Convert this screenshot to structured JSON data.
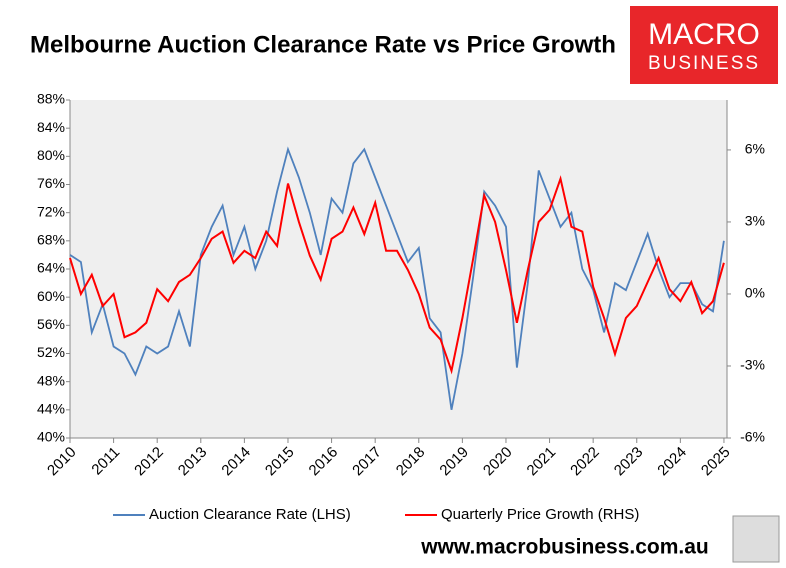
{
  "chart_data": {
    "type": "line",
    "title": "Melbourne Auction Clearance Rate vs Price Growth",
    "logo": [
      "MACRO",
      "BUSINESS"
    ],
    "footer": "www.macrobusiness.com.au",
    "x": [
      2010,
      2010.25,
      2010.5,
      2010.75,
      2011,
      2011.25,
      2011.5,
      2011.75,
      2012,
      2012.25,
      2012.5,
      2012.75,
      2013,
      2013.25,
      2013.5,
      2013.75,
      2014,
      2014.25,
      2014.5,
      2014.75,
      2015,
      2015.25,
      2015.5,
      2015.75,
      2016,
      2016.25,
      2016.5,
      2016.75,
      2017,
      2017.25,
      2017.5,
      2017.75,
      2018,
      2018.25,
      2018.5,
      2018.75,
      2019,
      2019.25,
      2019.5,
      2019.75,
      2020,
      2020.25,
      2020.5,
      2020.75,
      2021,
      2021.25,
      2021.5,
      2021.75,
      2022,
      2022.25,
      2022.5,
      2022.75,
      2023,
      2023.25,
      2023.5,
      2023.75,
      2024,
      2024.25,
      2024.5,
      2024.75,
      2025
    ],
    "series": [
      {
        "name": "Auction Clearance Rate (LHS)",
        "color": "#4f81bd",
        "values": [
          66,
          65,
          55,
          59,
          53,
          52,
          49,
          53,
          52,
          53,
          58,
          53,
          66,
          70,
          73,
          66,
          70,
          64,
          68,
          75,
          81,
          77,
          72,
          66,
          74,
          72,
          79,
          81,
          77,
          73,
          69,
          65,
          67,
          57,
          55,
          44,
          52,
          63,
          75,
          73,
          70,
          50,
          62,
          78,
          74,
          70,
          72,
          64,
          61,
          55,
          62,
          61,
          65,
          69,
          64,
          60,
          62,
          62,
          59,
          58,
          68
        ]
      },
      {
        "name": "Quarterly Price Growth (RHS)",
        "color": "#ff0000",
        "axis": "y2",
        "values": [
          1.5,
          0,
          0.8,
          -0.5,
          0,
          -1.8,
          -1.6,
          -1.2,
          0.2,
          -0.3,
          0.5,
          0.8,
          1.5,
          2.3,
          2.6,
          1.3,
          1.8,
          1.5,
          2.6,
          2.0,
          4.6,
          3.0,
          1.6,
          0.6,
          2.3,
          2.6,
          3.6,
          2.5,
          3.8,
          1.8,
          1.8,
          1.0,
          0,
          -1.4,
          -1.9,
          -3.2,
          -1.0,
          1.5,
          4.1,
          3.0,
          1.0,
          -1.2,
          1.0,
          3.0,
          3.5,
          4.8,
          2.8,
          2.6,
          0.3,
          -1.0,
          -2.5,
          -1.0,
          -0.5,
          0.5,
          1.5,
          0.2,
          -0.3,
          0.5,
          -0.8,
          -0.3,
          1.3
        ]
      }
    ],
    "xlim": [
      2010,
      2025.07
    ],
    "xticks": [
      2010,
      2011,
      2012,
      2013,
      2014,
      2015,
      2016,
      2017,
      2018,
      2019,
      2020,
      2021,
      2022,
      2023,
      2024,
      2025
    ],
    "ylim": [
      40,
      88
    ],
    "yticks": [
      {
        "value": 40,
        "label": "40%"
      },
      {
        "value": 44,
        "label": "44%"
      },
      {
        "value": 48,
        "label": "48%"
      },
      {
        "value": 52,
        "label": "52%"
      },
      {
        "value": 56,
        "label": "56%"
      },
      {
        "value": 60,
        "label": "60%"
      },
      {
        "value": 64,
        "label": "64%"
      },
      {
        "value": 68,
        "label": "68%"
      },
      {
        "value": 72,
        "label": "72%"
      },
      {
        "value": 76,
        "label": "76%"
      },
      {
        "value": 80,
        "label": "80%"
      },
      {
        "value": 84,
        "label": "84%"
      },
      {
        "value": 88,
        "label": "88%"
      }
    ],
    "y2lim": [
      -6,
      8.08
    ],
    "y2ticks": [
      {
        "value": -6,
        "label": "-6%"
      },
      {
        "value": -3,
        "label": "-3%"
      },
      {
        "value": 0,
        "label": "0%"
      },
      {
        "value": 3,
        "label": "3%"
      },
      {
        "value": 6,
        "label": "6%"
      }
    ],
    "grid": false,
    "legend": "bottom"
  }
}
